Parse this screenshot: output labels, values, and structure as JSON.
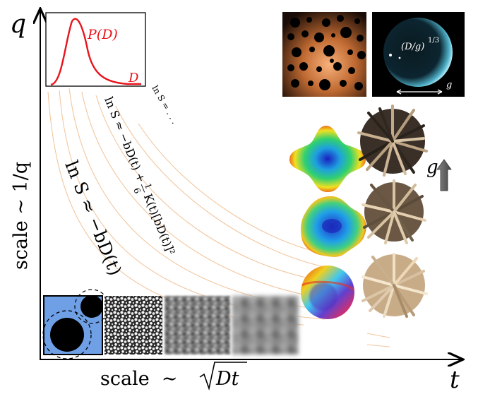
{
  "axes": {
    "y_axis_label": "q",
    "x_axis_label": "t",
    "y_scale_label": "scale  ∼ 1/q",
    "x_scale_prefix": "scale  ∼ ",
    "x_scale_radicand": "Dt"
  },
  "inset_distribution": {
    "curve_label": "P(D)",
    "axis_label": "D",
    "curve_color": "#e8141c"
  },
  "annotations": {
    "first_order": "ln S ≈ −bD(t)",
    "second_order_a": "ln S ≈ −bD(t) + ",
    "second_order_frac_num": "1",
    "second_order_frac_den": "6",
    "second_order_b": "K(t)[bD(t)]²",
    "higher_order": "ln S = . . ."
  },
  "right_panel": {
    "sphere_formula": "(D/g)",
    "sphere_exponent": "1/3",
    "sphere_g_label": "g",
    "g_arrow_label": "g"
  },
  "colors": {
    "curve_lines": "#f2c7a0",
    "axis": "#000000",
    "inset_blue": "#6fa0e6",
    "sphere_bg": "#000000",
    "glow": "#e08040",
    "arrow_grey": "#666666"
  }
}
